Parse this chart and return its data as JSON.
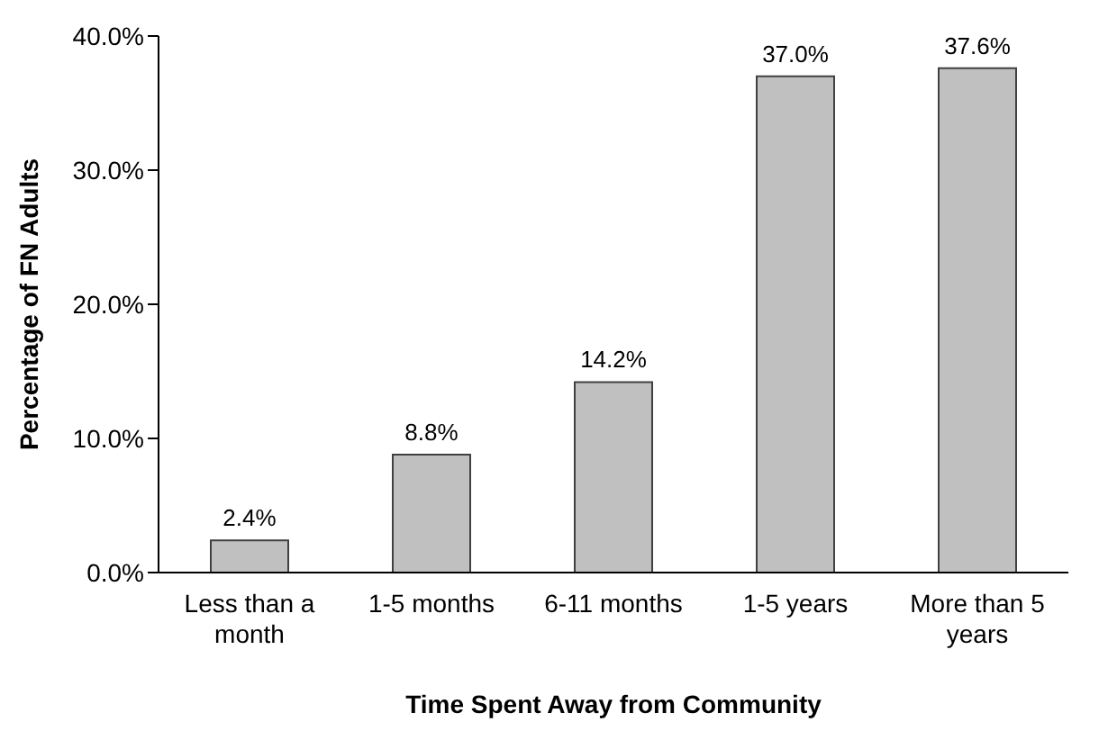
{
  "chart_data": {
    "type": "bar",
    "xlabel": "Time Spent Away from Community",
    "ylabel": "Percentage of FN Adults",
    "categories": [
      "Less than a month",
      "1-5 months",
      "6-11 months",
      "1-5 years",
      "More than 5 years"
    ],
    "values": [
      2.4,
      8.8,
      14.2,
      37.0,
      37.6
    ],
    "value_labels": [
      "2.4%",
      "8.8%",
      "14.2%",
      "37.0%",
      "37.6%"
    ],
    "color": "#c0c0c0",
    "ylim": [
      0,
      40
    ],
    "yticks": [
      {
        "value": 0,
        "label": "0.0%"
      },
      {
        "value": 10,
        "label": "10.0%"
      },
      {
        "value": 20,
        "label": "20.0%"
      },
      {
        "value": 30,
        "label": "30.0%"
      },
      {
        "value": 40,
        "label": "40.0%"
      }
    ],
    "grid": false,
    "legend": false
  }
}
